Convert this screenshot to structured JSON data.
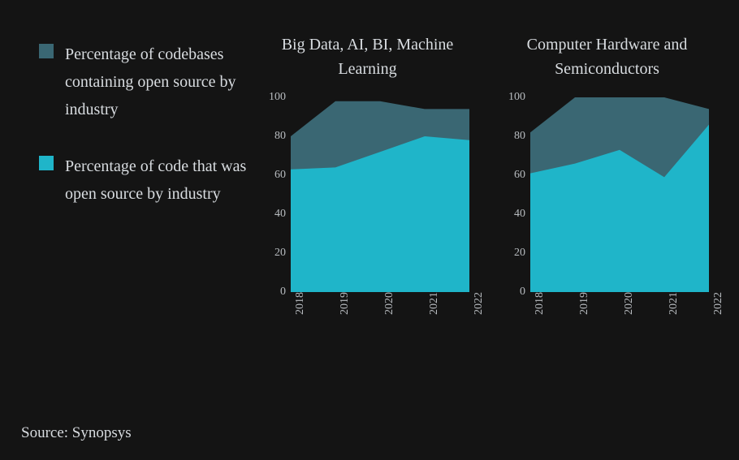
{
  "background_color": "#141414",
  "text_color": "#d8dce0",
  "legend": {
    "items": [
      {
        "label": "Percentage of codebases containing open source by industry",
        "color": "#3a6773"
      },
      {
        "label": "Percentage of code that was open source by industry",
        "color": "#1fb5c9"
      }
    ]
  },
  "axis": {
    "y": {
      "min": 0,
      "max": 100,
      "ticks": [
        0,
        20,
        40,
        60,
        80,
        100
      ],
      "fontsize": 14
    },
    "x": {
      "categories": [
        "2018",
        "2019",
        "2020",
        "2021",
        "2022"
      ],
      "fontsize": 14,
      "rotation": -90
    }
  },
  "charts": [
    {
      "title": "Big Data, AI, BI, Machine Learning",
      "type": "area",
      "series": [
        {
          "name": "codebases_containing",
          "color": "#3a6773",
          "values": [
            80,
            98,
            98,
            94,
            94
          ]
        },
        {
          "name": "code_open_source",
          "color": "#1fb5c9",
          "values": [
            63,
            64,
            72,
            80,
            78
          ]
        }
      ]
    },
    {
      "title": "Computer Hardware and Semiconductors",
      "type": "area",
      "series": [
        {
          "name": "codebases_containing",
          "color": "#3a6773",
          "values": [
            82,
            100,
            100,
            100,
            94
          ]
        },
        {
          "name": "code_open_source",
          "color": "#1fb5c9",
          "values": [
            61,
            66,
            73,
            59,
            86
          ]
        }
      ]
    }
  ],
  "source": "Source: Synopsys",
  "title_fontsize": 20,
  "legend_fontsize": 20
}
